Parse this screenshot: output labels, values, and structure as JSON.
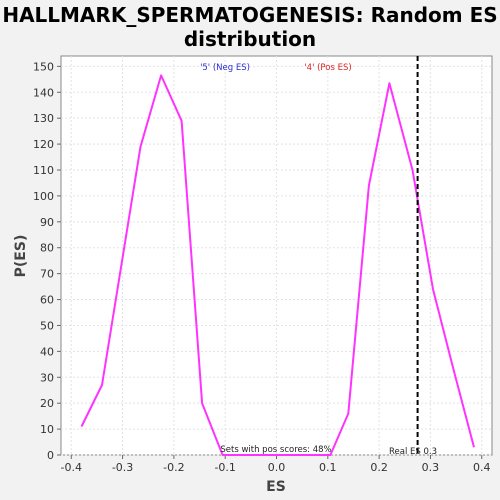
{
  "chart_data": {
    "type": "line",
    "title_line1": "HALLMARK_SPERMATOGENESIS: Random ES",
    "title_line2": "distribution",
    "xlabel": "ES",
    "ylabel": "P(ES)",
    "xlim": [
      -0.42,
      0.42
    ],
    "ylim": [
      0,
      154
    ],
    "x_ticks": [
      -0.4,
      -0.3,
      -0.2,
      -0.1,
      0.0,
      0.1,
      0.2,
      0.3,
      0.4
    ],
    "x_tick_labels": [
      "-0.4",
      "-0.3",
      "-0.2",
      "-0.1",
      "0.0",
      "0.1",
      "0.2",
      "0.3",
      "0.4"
    ],
    "y_ticks": [
      0,
      10,
      20,
      30,
      40,
      50,
      60,
      70,
      80,
      90,
      100,
      110,
      120,
      130,
      140,
      150
    ],
    "y_tick_labels": [
      "0",
      "10",
      "20",
      "30",
      "40",
      "50",
      "60",
      "70",
      "80",
      "90",
      "100",
      "110",
      "120",
      "130",
      "140",
      "150"
    ],
    "grid": true,
    "series": [
      {
        "color": "#ff33ff",
        "points": [
          [
            -0.38,
            11
          ],
          [
            -0.34,
            27
          ],
          [
            -0.265,
            119
          ],
          [
            -0.225,
            146.5
          ],
          [
            -0.185,
            129
          ],
          [
            -0.145,
            20
          ],
          [
            -0.105,
            0
          ],
          [
            0.105,
            0
          ],
          [
            0.14,
            16
          ],
          [
            0.18,
            104
          ],
          [
            0.22,
            143.5
          ],
          [
            0.265,
            110
          ],
          [
            0.305,
            64
          ],
          [
            0.345,
            33
          ],
          [
            0.385,
            3
          ]
        ]
      }
    ],
    "real_es": 0.275,
    "annotations": {
      "neg_label": "'5' (Neg ES)",
      "neg_color": "#2b2bd6",
      "pos_label": "'4' (Pos ES)",
      "pos_color": "#e02020",
      "pos_scores": "Sets with pos scores: 48%",
      "real_es_label": "Real ES 0.3"
    }
  }
}
